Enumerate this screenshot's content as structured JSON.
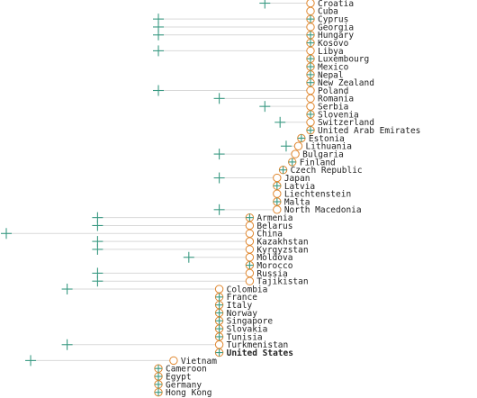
{
  "chart_data": {
    "type": "scatter",
    "title": "",
    "xlabel": "",
    "ylabel": "",
    "grid": false,
    "legend": "none",
    "highlight": "United States",
    "colors": {
      "plus_marker": "#3a9a83",
      "circle_marker": "#e0872f",
      "connector": "#d9d9d9",
      "text": "#222222"
    },
    "rows": [
      {
        "label": "Croatia",
        "value": 10,
        "start": 8.5,
        "marker": "circle"
      },
      {
        "label": "Cuba",
        "value": 10,
        "start": null,
        "marker": "circle"
      },
      {
        "label": "Cyprus",
        "value": 10,
        "start": 5,
        "marker": "plus"
      },
      {
        "label": "Georgia",
        "value": 10,
        "start": 5,
        "marker": "circle"
      },
      {
        "label": "Hungary",
        "value": 10,
        "start": 5,
        "marker": "plus"
      },
      {
        "label": "Kosovo",
        "value": 10,
        "start": null,
        "marker": "plus"
      },
      {
        "label": "Libya",
        "value": 10,
        "start": 5,
        "marker": "circle"
      },
      {
        "label": "Luxembourg",
        "value": 10,
        "start": null,
        "marker": "plus"
      },
      {
        "label": "Mexico",
        "value": 10,
        "start": null,
        "marker": "plus"
      },
      {
        "label": "Nepal",
        "value": 10,
        "start": null,
        "marker": "plus"
      },
      {
        "label": "New Zealand",
        "value": 10,
        "start": null,
        "marker": "plus"
      },
      {
        "label": "Poland",
        "value": 10,
        "start": 5,
        "marker": "circle"
      },
      {
        "label": "Romania",
        "value": 10,
        "start": 7,
        "marker": "circle"
      },
      {
        "label": "Serbia",
        "value": 10,
        "start": 8.5,
        "marker": "circle"
      },
      {
        "label": "Slovenia",
        "value": 10,
        "start": null,
        "marker": "plus"
      },
      {
        "label": "Switzerland",
        "value": 10,
        "start": 9,
        "marker": "circle"
      },
      {
        "label": "United Arab Emirates",
        "value": 10,
        "start": null,
        "marker": "plus"
      },
      {
        "label": "Estonia",
        "value": 9.7,
        "start": null,
        "marker": "plus"
      },
      {
        "label": "Lithuania",
        "value": 9.6,
        "start": 9.2,
        "marker": "circle"
      },
      {
        "label": "Bulgaria",
        "value": 9.5,
        "start": 7,
        "marker": "circle"
      },
      {
        "label": "Finland",
        "value": 9.4,
        "start": null,
        "marker": "plus"
      },
      {
        "label": "Czech Republic",
        "value": 9.1,
        "start": null,
        "marker": "plus"
      },
      {
        "label": "Japan",
        "value": 8.9,
        "start": 7,
        "marker": "circle"
      },
      {
        "label": "Latvia",
        "value": 8.9,
        "start": null,
        "marker": "plus"
      },
      {
        "label": "Liechtenstein",
        "value": 8.9,
        "start": null,
        "marker": "circle"
      },
      {
        "label": "Malta",
        "value": 8.9,
        "start": null,
        "marker": "plus"
      },
      {
        "label": "North Macedonia",
        "value": 8.9,
        "start": 7,
        "marker": "circle"
      },
      {
        "label": "Armenia",
        "value": 8,
        "start": 3,
        "marker": "plus"
      },
      {
        "label": "Belarus",
        "value": 8,
        "start": 3,
        "marker": "circle"
      },
      {
        "label": "China",
        "value": 8,
        "start": 0,
        "marker": "circle"
      },
      {
        "label": "Kazakhstan",
        "value": 8,
        "start": 3,
        "marker": "circle"
      },
      {
        "label": "Kyrgyzstan",
        "value": 8,
        "start": 3,
        "marker": "circle"
      },
      {
        "label": "Moldova",
        "value": 8,
        "start": 6,
        "marker": "circle"
      },
      {
        "label": "Morocco",
        "value": 8,
        "start": null,
        "marker": "plus"
      },
      {
        "label": "Russia",
        "value": 8,
        "start": 3,
        "marker": "circle"
      },
      {
        "label": "Tajikistan",
        "value": 8,
        "start": 3,
        "marker": "circle"
      },
      {
        "label": "Colombia",
        "value": 7,
        "start": 2,
        "marker": "circle"
      },
      {
        "label": "France",
        "value": 7,
        "start": null,
        "marker": "plus"
      },
      {
        "label": "Italy",
        "value": 7,
        "start": null,
        "marker": "plus"
      },
      {
        "label": "Norway",
        "value": 7,
        "start": null,
        "marker": "plus"
      },
      {
        "label": "Singapore",
        "value": 7,
        "start": null,
        "marker": "plus"
      },
      {
        "label": "Slovakia",
        "value": 7,
        "start": null,
        "marker": "plus"
      },
      {
        "label": "Tunisia",
        "value": 7,
        "start": null,
        "marker": "plus"
      },
      {
        "label": "Turkmenistan",
        "value": 7,
        "start": 2,
        "marker": "circle"
      },
      {
        "label": "United States",
        "value": 7,
        "start": null,
        "marker": "plus"
      },
      {
        "label": "Vietnam",
        "value": 5.5,
        "start": 0.8,
        "marker": "circle"
      },
      {
        "label": "Cameroon",
        "value": 5,
        "start": null,
        "marker": "plus"
      },
      {
        "label": "Egypt",
        "value": 5,
        "start": null,
        "marker": "plus"
      },
      {
        "label": "Germany",
        "value": 5,
        "start": null,
        "marker": "plus"
      },
      {
        "label": "Hong Kong",
        "value": 5,
        "start": null,
        "marker": "plus"
      }
    ]
  }
}
